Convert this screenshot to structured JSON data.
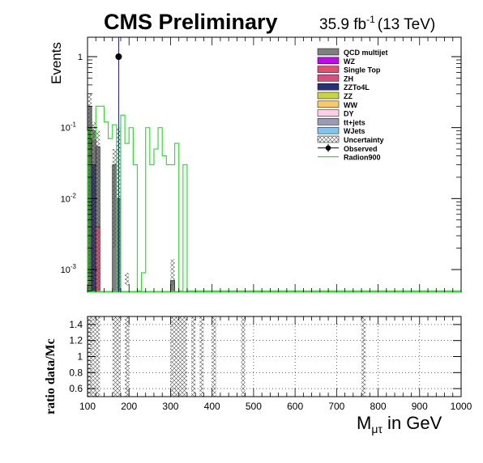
{
  "header": {
    "experiment": "CMS Preliminary",
    "lumi_value": "35.9 fb",
    "lumi_exp": "-1",
    "lumi_energy": "(13 TeV)"
  },
  "chart_data": [
    {
      "type": "bar",
      "panel": "main",
      "ylabel": "Events",
      "y_scale": "log",
      "ylim": [
        0.0005,
        2
      ],
      "xlim": [
        100,
        1000
      ],
      "y_ticks": [
        {
          "label": "1",
          "value": 1
        },
        {
          "base": "10",
          "exp": "-1",
          "value": 0.1
        },
        {
          "base": "10",
          "exp": "-2",
          "value": 0.01
        },
        {
          "base": "10",
          "exp": "-3",
          "value": 0.001
        }
      ],
      "legend_position": "top-right",
      "legend": [
        {
          "label": "QCD multijet",
          "color": "#7f7f7f",
          "style": "fill"
        },
        {
          "label": "WZ",
          "color": "#cc00ff",
          "style": "fill"
        },
        {
          "label": "Single Top",
          "color": "#e05070",
          "style": "fill"
        },
        {
          "label": "ZH",
          "color": "#e04a80",
          "style": "fill"
        },
        {
          "label": "ZZTo4L",
          "color": "#2a2f7a",
          "style": "fill"
        },
        {
          "label": "ZZ",
          "color": "#c8d43c",
          "style": "fill"
        },
        {
          "label": "WW",
          "color": "#ffc860",
          "style": "fill"
        },
        {
          "label": "DY",
          "color": "#ffd0e6",
          "style": "fill"
        },
        {
          "label": "tt+jets",
          "color": "#9a9ab8",
          "style": "fill"
        },
        {
          "label": "WJets",
          "color": "#80c4f0",
          "style": "fill"
        },
        {
          "label": "Uncertainty",
          "color": "#555555",
          "style": "hatch"
        },
        {
          "label": "Observed",
          "color": "#000000",
          "style": "marker"
        },
        {
          "label": "Radion900",
          "color": "#33dd33",
          "style": "line"
        }
      ],
      "stack_bins": [
        {
          "x0": 100,
          "x1": 110,
          "segments": [
            {
              "color": "#4e8a3c",
              "value": 0.1
            },
            {
              "color": "#7f7f7f",
              "value": 0.1
            }
          ]
        },
        {
          "x0": 110,
          "x1": 120,
          "segments": [
            {
              "color": "#2a2f7a",
              "value": 0.03
            },
            {
              "color": "#7f7f7f",
              "value": 0.06
            }
          ]
        },
        {
          "x0": 120,
          "x1": 130,
          "segments": [
            {
              "color": "#e05070",
              "value": 0.004
            },
            {
              "color": "#7f7f7f",
              "value": 0.05
            }
          ]
        },
        {
          "x0": 160,
          "x1": 170,
          "segments": [
            {
              "color": "#7f7f7f",
              "value": 0.03
            }
          ]
        },
        {
          "x0": 170,
          "x1": 180,
          "segments": [
            {
              "color": "#7f7f7f",
              "value": 0.01
            }
          ]
        },
        {
          "x0": 300,
          "x1": 310,
          "segments": [
            {
              "color": "#7f7f7f",
              "value": 0.0007
            }
          ]
        }
      ],
      "uncertainty_bins": [
        {
          "x0": 100,
          "x1": 110,
          "low": 0.0005,
          "high": 0.3
        },
        {
          "x0": 110,
          "x1": 120,
          "low": 0.0005,
          "high": 0.12
        },
        {
          "x0": 120,
          "x1": 130,
          "low": 0.0005,
          "high": 0.09
        },
        {
          "x0": 160,
          "x1": 170,
          "low": 0.002,
          "high": 0.05
        },
        {
          "x0": 170,
          "x1": 180,
          "low": 0.0005,
          "high": 0.1
        },
        {
          "x0": 190,
          "x1": 200,
          "low": 0.0006,
          "high": 0.0009
        },
        {
          "x0": 300,
          "x1": 310,
          "low": 0.0006,
          "high": 0.0014
        }
      ],
      "observed": [
        {
          "x": 175,
          "y": 1,
          "yerr_up": 10
        }
      ],
      "signal_series": {
        "name": "Radion900",
        "color": "#33dd33",
        "bins": [
          {
            "x0": 100,
            "x1": 110,
            "y": 0.09
          },
          {
            "x0": 110,
            "x1": 120,
            "y": 0.07
          },
          {
            "x0": 120,
            "x1": 130,
            "y": 0.2
          },
          {
            "x0": 130,
            "x1": 140,
            "y": 0.2
          },
          {
            "x0": 140,
            "x1": 150,
            "y": 0.12
          },
          {
            "x0": 150,
            "x1": 160,
            "y": 0.07
          },
          {
            "x0": 160,
            "x1": 170,
            "y": 0.11
          },
          {
            "x0": 170,
            "x1": 180,
            "y": 0.0005
          },
          {
            "x0": 180,
            "x1": 190,
            "y": 0.15
          },
          {
            "x0": 190,
            "x1": 200,
            "y": 0.06
          },
          {
            "x0": 200,
            "x1": 210,
            "y": 0.1
          },
          {
            "x0": 210,
            "x1": 220,
            "y": 0.03
          },
          {
            "x0": 220,
            "x1": 230,
            "y": 0.0005
          },
          {
            "x0": 230,
            "x1": 240,
            "y": 0.0009
          },
          {
            "x0": 240,
            "x1": 250,
            "y": 0.1
          },
          {
            "x0": 250,
            "x1": 260,
            "y": 0.03
          },
          {
            "x0": 260,
            "x1": 270,
            "y": 0.05
          },
          {
            "x0": 270,
            "x1": 280,
            "y": 0.1
          },
          {
            "x0": 280,
            "x1": 290,
            "y": 0.04
          },
          {
            "x0": 290,
            "x1": 300,
            "y": 0.03
          },
          {
            "x0": 300,
            "x1": 310,
            "y": 0.03
          },
          {
            "x0": 310,
            "x1": 320,
            "y": 0.06
          },
          {
            "x0": 320,
            "x1": 330,
            "y": 0.0005
          },
          {
            "x0": 330,
            "x1": 340,
            "y": 0.03
          },
          {
            "x0": 340,
            "x1": 1000,
            "y": 0.0005
          }
        ]
      }
    },
    {
      "type": "scatter",
      "panel": "ratio",
      "ylabel": "ratio data/Mc",
      "xlabel_main": "M",
      "xlabel_sub": "μτ",
      "xlabel_suffix": " in GeV",
      "xlim": [
        100,
        1000
      ],
      "ylim": [
        0.5,
        1.5
      ],
      "grid": true,
      "x_ticks": [
        100,
        200,
        300,
        400,
        500,
        600,
        700,
        800,
        900,
        1000
      ],
      "y_ticks": [
        0.6,
        0.8,
        1,
        1.2,
        1.4
      ],
      "uncertainty_bands": [
        {
          "x0": 100,
          "x1": 130
        },
        {
          "x0": 160,
          "x1": 180
        },
        {
          "x0": 190,
          "x1": 200
        },
        {
          "x0": 300,
          "x1": 340
        },
        {
          "x0": 350,
          "x1": 360
        },
        {
          "x0": 370,
          "x1": 380
        },
        {
          "x0": 400,
          "x1": 410
        },
        {
          "x0": 470,
          "x1": 480
        },
        {
          "x0": 760,
          "x1": 770
        }
      ]
    }
  ]
}
